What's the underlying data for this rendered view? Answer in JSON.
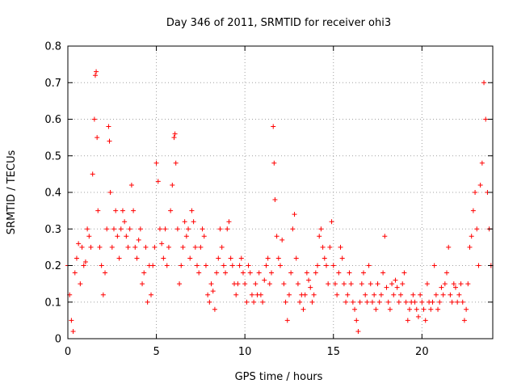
{
  "chart_data": {
    "type": "scatter",
    "title": "Day 346 of 2011, SRMTID for receiver ohi3",
    "xlabel": "GPS time / hours",
    "ylabel": "SRMTID / TECUs",
    "xlim": [
      0,
      24
    ],
    "ylim": [
      0,
      0.8
    ],
    "xticks": [
      0,
      5,
      10,
      15,
      20
    ],
    "xtick_labels": [
      "0",
      "5",
      "10",
      "15",
      "20"
    ],
    "yticks": [
      0,
      0.1,
      0.2,
      0.3,
      0.4,
      0.5,
      0.6,
      0.7,
      0.8
    ],
    "ytick_labels": [
      "0",
      "0.1",
      "0.2",
      "0.3",
      "0.4",
      "0.5",
      "0.6",
      "0.7",
      "0.8"
    ],
    "grid": true,
    "marker": "plus",
    "point_color": "#ff0000",
    "series": [
      {
        "name": "SRMTID",
        "x": [
          0.0,
          0.1,
          0.2,
          0.3,
          0.4,
          0.5,
          0.6,
          0.7,
          0.8,
          0.9,
          1.0,
          1.1,
          1.2,
          1.3,
          1.4,
          1.5,
          1.55,
          1.6,
          1.65,
          1.7,
          1.8,
          1.9,
          2.0,
          2.1,
          2.2,
          2.3,
          2.35,
          2.4,
          2.5,
          2.6,
          2.7,
          2.8,
          2.9,
          3.0,
          3.1,
          3.2,
          3.3,
          3.4,
          3.5,
          3.6,
          3.7,
          3.8,
          3.9,
          4.0,
          4.1,
          4.2,
          4.3,
          4.4,
          4.5,
          4.6,
          4.7,
          4.8,
          4.9,
          5.0,
          5.1,
          5.2,
          5.3,
          5.4,
          5.5,
          5.6,
          5.7,
          5.8,
          5.9,
          6.0,
          6.05,
          6.1,
          6.2,
          6.3,
          6.4,
          6.5,
          6.6,
          6.7,
          6.8,
          6.9,
          7.0,
          7.1,
          7.2,
          7.3,
          7.4,
          7.5,
          7.6,
          7.7,
          7.8,
          7.9,
          8.0,
          8.1,
          8.2,
          8.3,
          8.4,
          8.5,
          8.6,
          8.7,
          8.8,
          8.9,
          9.0,
          9.1,
          9.2,
          9.3,
          9.4,
          9.5,
          9.6,
          9.7,
          9.8,
          9.9,
          10.0,
          10.1,
          10.2,
          10.3,
          10.4,
          10.5,
          10.6,
          10.7,
          10.8,
          10.9,
          11.0,
          11.1,
          11.2,
          11.3,
          11.4,
          11.5,
          11.6,
          11.65,
          11.7,
          11.8,
          11.9,
          12.0,
          12.1,
          12.2,
          12.3,
          12.4,
          12.5,
          12.6,
          12.7,
          12.8,
          12.9,
          13.0,
          13.1,
          13.2,
          13.3,
          13.4,
          13.5,
          13.6,
          13.7,
          13.8,
          13.9,
          14.0,
          14.1,
          14.2,
          14.3,
          14.4,
          14.5,
          14.6,
          14.7,
          14.8,
          14.9,
          15.0,
          15.1,
          15.2,
          15.3,
          15.4,
          15.5,
          15.6,
          15.7,
          15.8,
          15.9,
          16.0,
          16.1,
          16.2,
          16.3,
          16.4,
          16.5,
          16.6,
          16.7,
          16.8,
          16.9,
          17.0,
          17.1,
          17.2,
          17.3,
          17.4,
          17.5,
          17.6,
          17.7,
          17.8,
          17.9,
          18.0,
          18.1,
          18.2,
          18.3,
          18.4,
          18.5,
          18.6,
          18.7,
          18.8,
          18.9,
          19.0,
          19.1,
          19.2,
          19.3,
          19.4,
          19.5,
          19.6,
          19.7,
          19.8,
          19.9,
          20.0,
          20.1,
          20.2,
          20.3,
          20.4,
          20.5,
          20.6,
          20.7,
          20.8,
          20.9,
          21.0,
          21.1,
          21.2,
          21.3,
          21.4,
          21.5,
          21.6,
          21.7,
          21.8,
          21.9,
          22.0,
          22.1,
          22.2,
          22.3,
          22.4,
          22.5,
          22.6,
          22.7,
          22.8,
          22.9,
          23.0,
          23.1,
          23.2,
          23.3,
          23.4,
          23.5,
          23.6,
          23.7,
          23.8,
          23.9
        ],
        "y": [
          0.2,
          0.12,
          0.05,
          0.02,
          0.18,
          0.22,
          0.26,
          0.15,
          0.25,
          0.2,
          0.21,
          0.3,
          0.28,
          0.25,
          0.45,
          0.6,
          0.72,
          0.73,
          0.55,
          0.35,
          0.25,
          0.2,
          0.12,
          0.18,
          0.3,
          0.58,
          0.54,
          0.4,
          0.25,
          0.3,
          0.35,
          0.28,
          0.22,
          0.3,
          0.35,
          0.32,
          0.28,
          0.25,
          0.3,
          0.42,
          0.35,
          0.25,
          0.22,
          0.27,
          0.3,
          0.15,
          0.18,
          0.25,
          0.1,
          0.2,
          0.12,
          0.2,
          0.25,
          0.48,
          0.43,
          0.3,
          0.26,
          0.22,
          0.3,
          0.2,
          0.25,
          0.35,
          0.42,
          0.55,
          0.56,
          0.48,
          0.3,
          0.15,
          0.2,
          0.25,
          0.32,
          0.28,
          0.3,
          0.22,
          0.35,
          0.32,
          0.25,
          0.2,
          0.18,
          0.25,
          0.3,
          0.28,
          0.2,
          0.12,
          0.1,
          0.15,
          0.13,
          0.08,
          0.18,
          0.22,
          0.3,
          0.25,
          0.2,
          0.18,
          0.3,
          0.32,
          0.22,
          0.2,
          0.15,
          0.12,
          0.15,
          0.2,
          0.22,
          0.18,
          0.15,
          0.1,
          0.2,
          0.18,
          0.12,
          0.1,
          0.15,
          0.12,
          0.18,
          0.12,
          0.1,
          0.16,
          0.2,
          0.22,
          0.15,
          0.18,
          0.58,
          0.48,
          0.38,
          0.28,
          0.22,
          0.2,
          0.27,
          0.15,
          0.1,
          0.05,
          0.12,
          0.18,
          0.3,
          0.34,
          0.22,
          0.15,
          0.1,
          0.12,
          0.08,
          0.12,
          0.18,
          0.16,
          0.14,
          0.1,
          0.12,
          0.18,
          0.2,
          0.28,
          0.3,
          0.25,
          0.22,
          0.2,
          0.15,
          0.25,
          0.32,
          0.2,
          0.15,
          0.12,
          0.18,
          0.25,
          0.22,
          0.15,
          0.1,
          0.12,
          0.18,
          0.15,
          0.1,
          0.08,
          0.05,
          0.02,
          0.1,
          0.15,
          0.18,
          0.12,
          0.1,
          0.2,
          0.15,
          0.1,
          0.12,
          0.08,
          0.15,
          0.1,
          0.12,
          0.18,
          0.28,
          0.14,
          0.1,
          0.08,
          0.15,
          0.12,
          0.16,
          0.14,
          0.1,
          0.12,
          0.15,
          0.18,
          0.1,
          0.05,
          0.08,
          0.1,
          0.12,
          0.1,
          0.08,
          0.06,
          0.12,
          0.1,
          0.08,
          0.05,
          0.15,
          0.1,
          0.08,
          0.1,
          0.2,
          0.12,
          0.08,
          0.1,
          0.14,
          0.12,
          0.15,
          0.18,
          0.25,
          0.12,
          0.1,
          0.15,
          0.14,
          0.1,
          0.12,
          0.15,
          0.1,
          0.05,
          0.08,
          0.15,
          0.25,
          0.28,
          0.35,
          0.4,
          0.3,
          0.2,
          0.42,
          0.48,
          0.7,
          0.6,
          0.4,
          0.3,
          0.2
        ]
      }
    ]
  }
}
